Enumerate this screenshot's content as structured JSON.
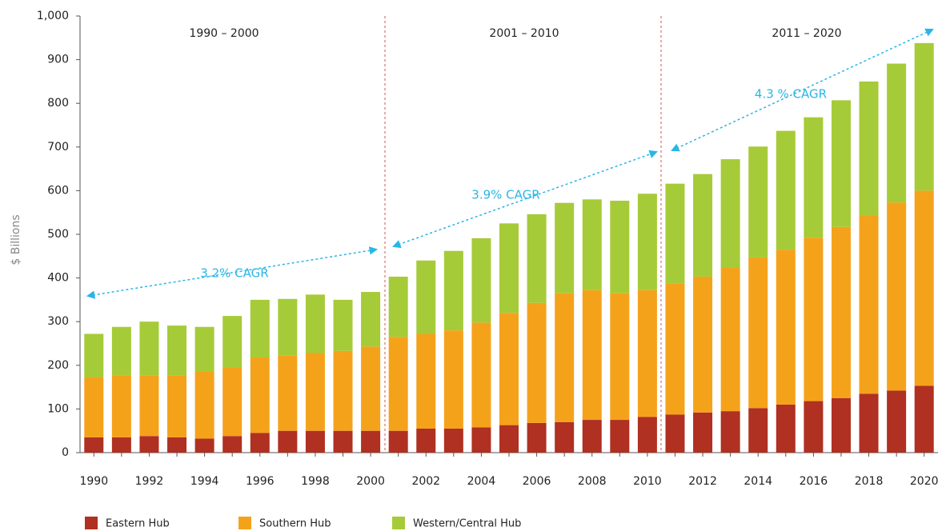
{
  "chart_data": {
    "type": "stacked-bar",
    "y_label": "$ Billions",
    "categories": [
      "1990",
      null,
      "1992",
      null,
      "1994",
      null,
      "1996",
      null,
      "1998",
      null,
      "2000",
      null,
      "2002",
      null,
      "2004",
      null,
      "2006",
      null,
      "2008",
      null,
      "2010",
      null,
      "2012",
      null,
      "2014",
      null,
      "2016",
      null,
      "2018",
      null,
      "2020"
    ],
    "series": [
      {
        "name": "Eastern Hub",
        "color": "#b03022",
        "values": [
          35,
          35,
          38,
          35,
          32,
          38,
          45,
          50,
          50,
          50,
          50,
          50,
          55,
          55,
          58,
          63,
          68,
          70,
          75,
          75,
          82,
          87,
          92,
          95,
          102,
          110,
          118,
          125,
          135,
          142,
          153
        ]
      },
      {
        "name": "Southern Hub",
        "color": "#f5a21b",
        "values": [
          138,
          141,
          139,
          142,
          154,
          157,
          173,
          173,
          178,
          183,
          193,
          215,
          217,
          225,
          240,
          257,
          275,
          295,
          297,
          290,
          290,
          301,
          311,
          328,
          345,
          355,
          374,
          392,
          408,
          431,
          447
        ]
      },
      {
        "name": "Western/Central Hub",
        "color": "#a6cb38",
        "values": [
          99,
          112,
          123,
          114,
          102,
          118,
          132,
          129,
          134,
          117,
          125,
          138,
          168,
          182,
          193,
          205,
          203,
          207,
          208,
          212,
          221,
          228,
          235,
          249,
          254,
          272,
          276,
          290,
          307,
          318,
          338
        ]
      }
    ],
    "ylim": [
      0,
      1000
    ],
    "yticks": [
      0,
      100,
      200,
      300,
      400,
      500,
      600,
      700,
      800,
      900,
      {
        "value": 1000,
        "label": "1,000"
      }
    ],
    "annotations": [
      "1990 – 2000",
      "2001 – 2010",
      "2011 – 2020",
      "3.2% CAGR",
      "3.9% CAGR",
      "4.3 % CAGR"
    ]
  }
}
